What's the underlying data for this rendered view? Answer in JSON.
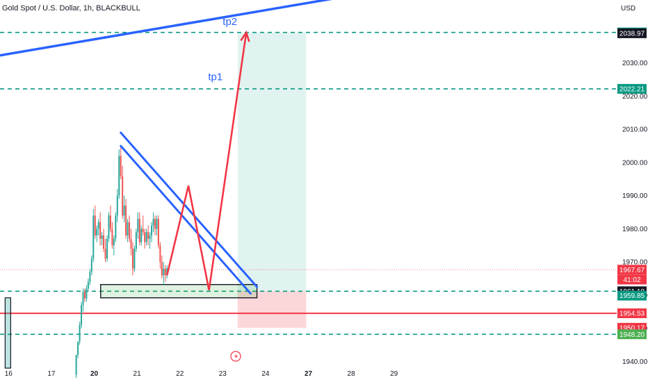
{
  "header": {
    "title": "Gold Spot / U.S. Dollar, 1h, BLACKBULL",
    "currency": "USD"
  },
  "chart_data": {
    "type": "candlestick",
    "y_axis": {
      "range": [
        1938,
        2049
      ],
      "ticks": [
        1940,
        1950,
        1960,
        1970,
        1980,
        1990,
        2000,
        2010,
        2020,
        2030
      ]
    },
    "x_axis": {
      "range": [
        15.8,
        30.2
      ],
      "ticks": [
        {
          "label": "16",
          "x": 16
        },
        {
          "label": "17",
          "x": 17
        },
        {
          "label": "20",
          "x": 18
        },
        {
          "label": "21",
          "x": 19
        },
        {
          "label": "22",
          "x": 20
        },
        {
          "label": "23",
          "x": 21
        },
        {
          "label": "24",
          "x": 22
        },
        {
          "label": "27",
          "x": 23
        },
        {
          "label": "28",
          "x": 24
        },
        {
          "label": "29",
          "x": 25
        }
      ]
    },
    "colors": {
      "up": "#26a69a",
      "down": "#ef5350",
      "blue": "#2962ff",
      "red": "#f23645",
      "green_dash": "#089981"
    },
    "candles": [
      [
        17.58,
        1936,
        1942,
        1935,
        1942
      ],
      [
        17.62,
        1942,
        1946,
        1941,
        1946
      ],
      [
        17.66,
        1946,
        1952,
        1945,
        1951
      ],
      [
        17.7,
        1951,
        1958,
        1950,
        1957
      ],
      [
        17.74,
        1957,
        1962,
        1955,
        1961
      ],
      [
        17.78,
        1961,
        1962,
        1958,
        1959
      ],
      [
        17.82,
        1959,
        1963,
        1958,
        1962
      ],
      [
        17.86,
        1962,
        1965,
        1961,
        1964
      ],
      [
        17.9,
        1964,
        1968,
        1963,
        1967
      ],
      [
        17.94,
        1967,
        1972,
        1966,
        1971
      ],
      [
        17.98,
        1971,
        1986,
        1970,
        1984
      ],
      [
        18.02,
        1984,
        1987,
        1977,
        1978
      ],
      [
        18.06,
        1978,
        1981,
        1976,
        1980
      ],
      [
        18.1,
        1980,
        1983,
        1978,
        1982
      ],
      [
        18.14,
        1982,
        1985,
        1975,
        1977
      ],
      [
        18.18,
        1977,
        1979,
        1975,
        1978
      ],
      [
        18.22,
        1978,
        1980,
        1973,
        1974
      ],
      [
        18.26,
        1974,
        1977,
        1970,
        1971
      ],
      [
        18.3,
        1971,
        1978,
        1970,
        1977
      ],
      [
        18.34,
        1977,
        1985,
        1976,
        1984
      ],
      [
        18.38,
        1984,
        1987,
        1979,
        1980
      ],
      [
        18.42,
        1980,
        1982,
        1974,
        1975
      ],
      [
        18.46,
        1975,
        1978,
        1972,
        1977
      ],
      [
        18.5,
        1977,
        1985,
        1976,
        1984
      ],
      [
        18.54,
        1984,
        1992,
        1982,
        1990
      ],
      [
        18.58,
        1990,
        2004,
        1989,
        2002
      ],
      [
        18.62,
        2002,
        2005,
        1995,
        1996
      ],
      [
        18.66,
        1996,
        1999,
        1983,
        1984
      ],
      [
        18.7,
        1984,
        1990,
        1982,
        1987
      ],
      [
        18.74,
        1987,
        1989,
        1977,
        1978
      ],
      [
        18.78,
        1978,
        1983,
        1976,
        1982
      ],
      [
        18.82,
        1982,
        1984,
        1976,
        1977
      ],
      [
        18.86,
        1977,
        1980,
        1972,
        1974
      ],
      [
        18.9,
        1974,
        1976,
        1966,
        1968
      ],
      [
        18.94,
        1968,
        1975,
        1967,
        1974
      ],
      [
        18.98,
        1974,
        1980,
        1973,
        1979
      ],
      [
        19.02,
        1979,
        1985,
        1977,
        1983
      ],
      [
        19.06,
        1983,
        1985,
        1975,
        1976
      ],
      [
        19.1,
        1976,
        1981,
        1975,
        1980
      ],
      [
        19.14,
        1980,
        1984,
        1978,
        1979
      ],
      [
        19.18,
        1979,
        1980,
        1974,
        1976
      ],
      [
        19.22,
        1976,
        1980,
        1975,
        1979
      ],
      [
        19.26,
        1979,
        1981,
        1975,
        1977
      ],
      [
        19.3,
        1977,
        1979,
        1974,
        1978
      ],
      [
        19.34,
        1978,
        1982,
        1976,
        1981
      ],
      [
        19.38,
        1981,
        1985,
        1979,
        1983
      ],
      [
        19.42,
        1983,
        1984,
        1978,
        1980
      ],
      [
        19.46,
        1980,
        1984,
        1978,
        1983
      ],
      [
        19.5,
        1983,
        1984,
        1974,
        1975
      ],
      [
        19.54,
        1975,
        1976,
        1968,
        1970
      ],
      [
        19.58,
        1970,
        1972,
        1965,
        1966
      ],
      [
        19.62,
        1966,
        1970,
        1963,
        1968
      ],
      [
        19.66,
        1968,
        1969,
        1964,
        1966
      ],
      [
        19.7,
        1966,
        1969,
        1965,
        1968
      ]
    ],
    "levels": [
      {
        "price": 2039.22,
        "style": "dash",
        "color": "#089981"
      },
      {
        "price": 2022.21,
        "style": "dash",
        "color": "#089981"
      },
      {
        "price": 1961.18,
        "style": "dash",
        "color": "#089981"
      },
      {
        "price": 1954.53,
        "style": "solid",
        "color": "#f23645"
      },
      {
        "price": 1948.2,
        "style": "dash",
        "color": "#089981"
      },
      {
        "price": 1967.67,
        "style": "dot",
        "color": "#f23645"
      }
    ],
    "price_tags": [
      {
        "label": "2039.22",
        "price": 2039.22,
        "bg": "#089981"
      },
      {
        "label": "2038.97",
        "price": 2038.97,
        "bg": "#131722"
      },
      {
        "label": "2022.21",
        "price": 2022.21,
        "bg": "#089981"
      },
      {
        "label": "1967.67",
        "price": 1967.67,
        "bg": "#f23645"
      },
      {
        "label": "41:02",
        "price": 1964.7,
        "bg": "#f23645"
      },
      {
        "label": "1961.18",
        "price": 1961.18,
        "bg": "#131722"
      },
      {
        "label": "1959.85",
        "price": 1959.85,
        "bg": "#089981"
      },
      {
        "label": "1954.53",
        "price": 1954.53,
        "bg": "#f23645"
      },
      {
        "label": "1950.17",
        "price": 1950.17,
        "bg": "#f23645"
      },
      {
        "label": "1948.20",
        "price": 1948.2,
        "bg": "#4caf50"
      }
    ],
    "position": {
      "x_start": 21.35,
      "x_end": 22.95,
      "entry": 1961.18,
      "target": 2039.22,
      "stop": 1950.17
    },
    "zone": {
      "x_start": 18.15,
      "x_end": 21.8,
      "y_top": 1963.2,
      "y_bottom": 1959.2
    },
    "left_box": {
      "x_start": 15.92,
      "x_end": 16.05,
      "top": 1959.2,
      "bottom": 1938
    },
    "trend_top": [
      [
        15.8,
        2032.3
      ],
      [
        24.3,
        2051
      ]
    ],
    "wedge_lines": [
      [
        [
          18.62,
          2009
        ],
        [
          21.8,
          1962.5
        ]
      ],
      [
        [
          18.62,
          2005
        ],
        [
          21.65,
          1960.5
        ]
      ]
    ],
    "red_path": [
      [
        19.7,
        1966
      ],
      [
        20.2,
        1993
      ],
      [
        20.68,
        1961.5
      ],
      [
        21.55,
        2039.2
      ]
    ],
    "annotations": [
      {
        "label": "tp2",
        "x": 21.0,
        "y": 2041.5
      },
      {
        "label": "tp1",
        "x": 20.66,
        "y": 2024.8
      }
    ]
  }
}
